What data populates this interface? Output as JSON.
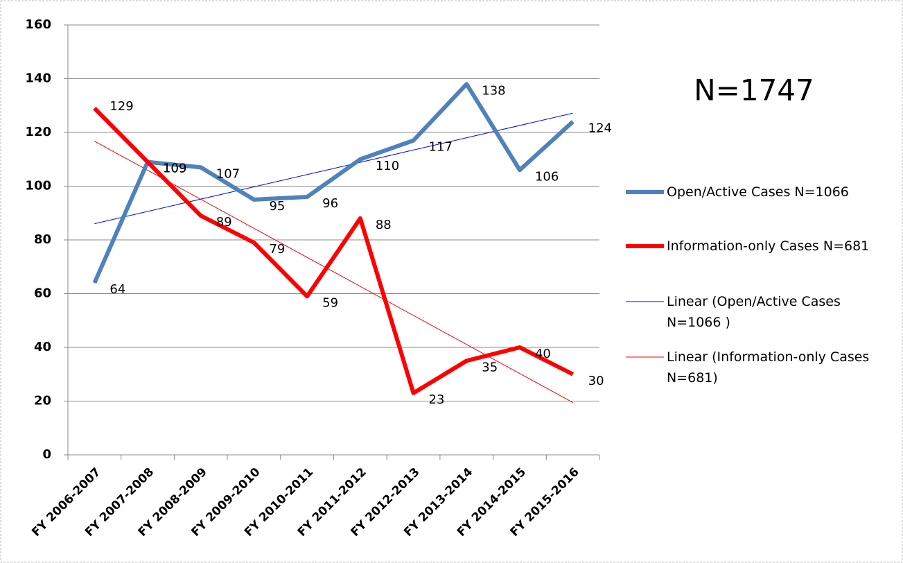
{
  "chart_data": {
    "type": "line",
    "annotation": "N=1747",
    "categories": [
      "FY 2006-2007",
      "FY 2007-2008",
      "FY 2008-2009",
      "FY 2009-2010",
      "FY 2010-2011",
      "FY 2011-2012",
      "FY 2012-2013",
      "FY 2013-2014",
      "FY 2014-2015",
      "FY 2015-2016"
    ],
    "series": [
      {
        "name": "Open/Active Cases N=1066",
        "color": "#4f81bd",
        "values": [
          64,
          109,
          107,
          95,
          96,
          110,
          117,
          138,
          106,
          124
        ]
      },
      {
        "name": "Information-only Cases N=681",
        "color": "#ff0000",
        "values": [
          129,
          109,
          89,
          79,
          59,
          88,
          23,
          35,
          40,
          30
        ]
      }
    ],
    "trendlines": [
      {
        "name": "Linear (Open/Active Cases N=1066 )",
        "series": 0,
        "color": "#0000ff"
      },
      {
        "name": "Linear (Information-only Cases N=681)",
        "series": 1,
        "color": "#ff0000"
      }
    ],
    "ylim": [
      0,
      160
    ],
    "yticks": [
      0,
      20,
      40,
      60,
      80,
      100,
      120,
      140,
      160
    ],
    "grid": true,
    "legend": "right"
  }
}
